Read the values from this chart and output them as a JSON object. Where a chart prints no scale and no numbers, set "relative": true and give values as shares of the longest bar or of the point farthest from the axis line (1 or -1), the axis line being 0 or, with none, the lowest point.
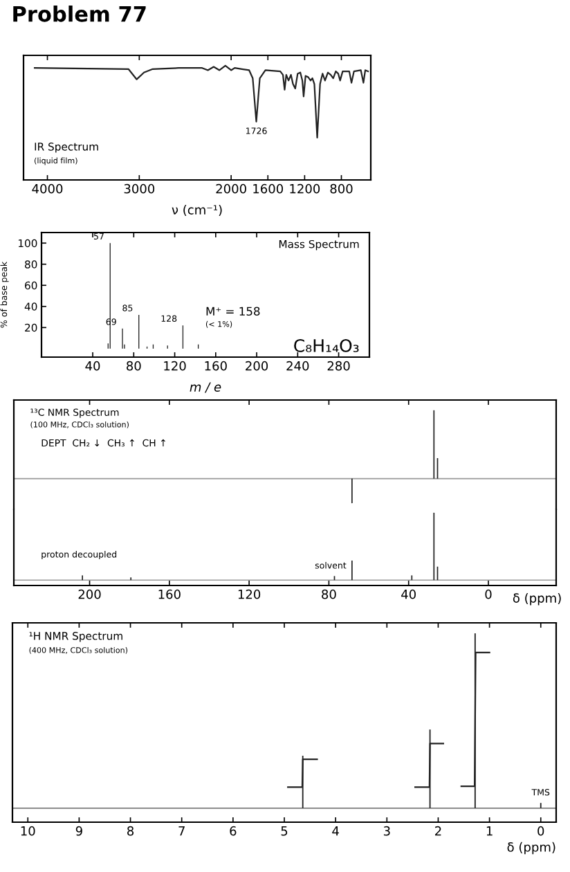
{
  "chart_data": [
    {
      "type": "line",
      "title": "Problem 77",
      "relative": true,
      "xlabel": "ν (cm⁻¹)",
      "xlim": [
        4260,
        480
      ],
      "xticks": [
        4000,
        3000,
        2000,
        1600,
        1200,
        800
      ],
      "annotations": [
        "IR Spectrum",
        "(liquid film)",
        {
          "text": "1726",
          "x": 1726,
          "y": 0.51
        }
      ],
      "series": [
        {
          "color": "#222222",
          "x": [
            4139,
            3118,
            3028,
            2949,
            2854,
            2570,
            2316,
            2253,
            2190,
            2127,
            2063,
            2000,
            1961,
            1883,
            1804,
            1765,
            1726,
            1688,
            1627,
            1465,
            1436,
            1418,
            1400,
            1375,
            1349,
            1327,
            1302,
            1276,
            1247,
            1225,
            1211,
            1190,
            1162,
            1135,
            1115,
            1094,
            1063,
            1032,
            1005,
            978,
            947,
            916,
            889,
            861,
            834,
            814,
            786,
            714,
            690,
            663,
            588,
            560,
            540,
            509
          ],
          "values": [
            0.98,
            0.97,
            0.88,
            0.94,
            0.97,
            0.98,
            0.98,
            0.96,
            0.99,
            0.96,
            1.0,
            0.96,
            0.98,
            0.97,
            0.96,
            0.89,
            0.51,
            0.89,
            0.96,
            0.95,
            0.92,
            0.79,
            0.92,
            0.87,
            0.92,
            0.84,
            0.8,
            0.93,
            0.94,
            0.87,
            0.73,
            0.91,
            0.9,
            0.87,
            0.89,
            0.84,
            0.37,
            0.84,
            0.93,
            0.87,
            0.94,
            0.92,
            0.89,
            0.95,
            0.93,
            0.87,
            0.95,
            0.95,
            0.85,
            0.95,
            0.96,
            0.85,
            0.96,
            0.95
          ]
        }
      ]
    },
    {
      "type": "bar",
      "xlabel": "m / e",
      "ylabel": "% of base peak",
      "xlim": [
        -10,
        310
      ],
      "xticks": [
        40,
        80,
        120,
        160,
        200,
        240,
        280
      ],
      "ylim": [
        -8,
        110
      ],
      "yticks": [
        20,
        40,
        60,
        80,
        100
      ],
      "annotations": [
        "Mass Spectrum",
        "M⁺ = 158",
        "(< 1%)",
        "C₈H₁₄O₃",
        {
          "text": "57",
          "x": 57,
          "y": 100
        },
        {
          "text": "69",
          "x": 69,
          "y": 19
        },
        {
          "text": "85",
          "x": 85,
          "y": 32
        },
        {
          "text": "128",
          "x": 128,
          "y": 22
        }
      ],
      "series": [
        {
          "color": "#222222",
          "x": [
            55,
            57,
            69,
            71,
            85,
            93,
            99,
            113,
            128,
            143
          ],
          "values": [
            5,
            100,
            19,
            4,
            32,
            2,
            4,
            3,
            22,
            4
          ]
        }
      ]
    },
    {
      "type": "bar",
      "relative": true,
      "tick_labels": false,
      "xlim": [
        238,
        -34
      ],
      "xticks": [
        200,
        160,
        120,
        80,
        40,
        0
      ],
      "annotations": [
        "¹³C NMR Spectrum",
        "(100 MHz, CDCl₃ solution)",
        "DEPT  CH₂ ↓  CH₃ ↑  CH ↑"
      ],
      "ref_lines": [
        {
          "axis": "y",
          "value": 0,
          "color": "#999999"
        }
      ],
      "series": [
        {
          "color": "#222222",
          "x": [
            68.4,
            27.3,
            25.5
          ],
          "values": [
            -0.36,
            1.0,
            0.3
          ]
        }
      ]
    },
    {
      "type": "bar",
      "relative": true,
      "xlabel": "δ (ppm)",
      "xlim": [
        238,
        -34
      ],
      "xticks": [
        200,
        160,
        120,
        80,
        40,
        0
      ],
      "annotations": [
        "proton decoupled",
        {
          "text": "solvent",
          "x": 77.2,
          "y": 0.06
        }
      ],
      "ref_lines": [
        {
          "axis": "y",
          "value": 0,
          "color": "#999999"
        }
      ],
      "series": [
        {
          "color": "#222222",
          "x": [
            203.6,
            179.3,
            77.2,
            68.4,
            38.4,
            27.3,
            25.5
          ],
          "values": [
            0.07,
            0.04,
            0.06,
            0.29,
            0.07,
            1.0,
            0.2
          ]
        }
      ]
    },
    {
      "type": "bar",
      "relative": true,
      "xlabel": "δ (ppm)",
      "xlim": [
        10.3,
        -0.3
      ],
      "xticks": [
        10,
        9,
        8,
        7,
        6,
        5,
        4,
        3,
        2,
        1,
        0
      ],
      "annotations": [
        "¹H NMR Spectrum",
        "(400 MHz, CDCl₃ solution)",
        {
          "text": "TMS",
          "x": 0,
          "y": 0.03
        }
      ],
      "ref_lines": [
        {
          "axis": "y",
          "value": 0,
          "color": "#666666"
        }
      ],
      "series": [
        {
          "color": "#222222",
          "x": [
            4.64,
            2.16,
            1.28,
            0
          ],
          "values": [
            0.3,
            0.45,
            1.0,
            0.03
          ]
        },
        {
          "type": "line",
          "color": "#222222",
          "x": [
            4.93,
            4.65,
            4.64,
            4.36
          ],
          "values": [
            0.12,
            0.12,
            0.28,
            0.28
          ]
        },
        {
          "type": "line",
          "color": "#222222",
          "x": [
            2.45,
            2.17,
            2.16,
            1.9
          ],
          "values": [
            0.12,
            0.12,
            0.37,
            0.37
          ]
        },
        {
          "type": "line",
          "color": "#222222",
          "x": [
            1.55,
            1.29,
            1.27,
            1.0
          ],
          "values": [
            0.125,
            0.125,
            0.89,
            0.89
          ]
        }
      ]
    }
  ]
}
